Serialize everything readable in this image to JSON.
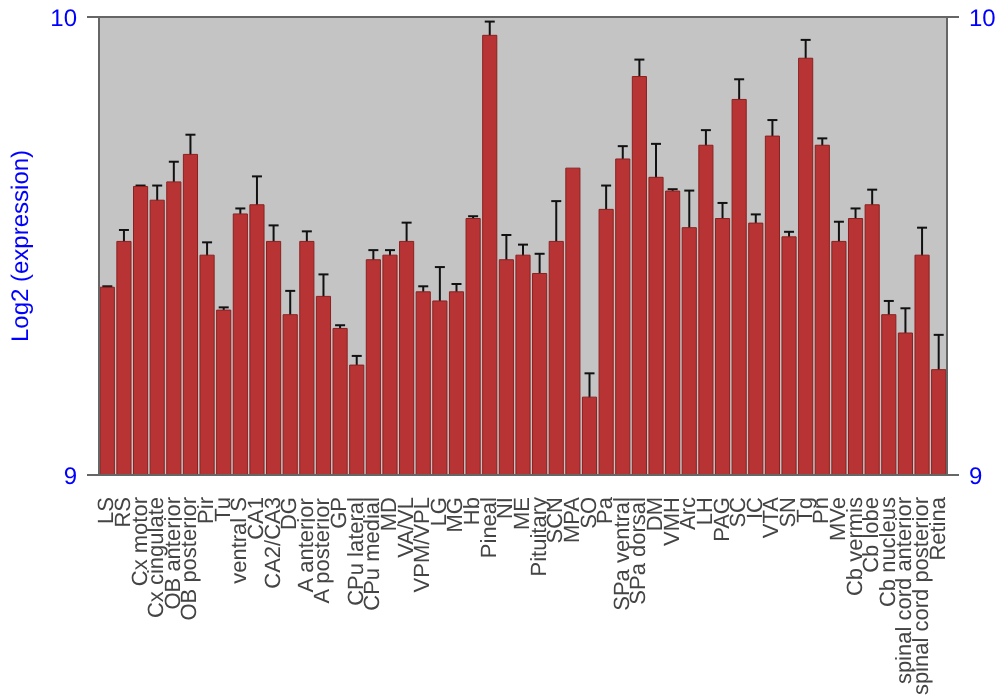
{
  "chart_data": {
    "type": "bar",
    "ylabel": "Log2 (expression)",
    "categories": [
      "LS",
      "RS",
      "Cx motor",
      "Cx cingulate",
      "OB anterior",
      "OB posterior",
      "Pir",
      "Tu",
      "ventral S",
      "CA1",
      "CA2/CA3",
      "DG",
      "A anterior",
      "A posterior",
      "GP",
      "CPu lateral",
      "CPu medial",
      "MD",
      "VA/VL",
      "VPM/VPL",
      "LG",
      "MG",
      "Hb",
      "Pineal",
      "NI",
      "ME",
      "Pituitary",
      "SCN",
      "MPA",
      "SO",
      "Pa",
      "SPa ventral",
      "SPa dorsal",
      "DM",
      "VMH",
      "Arc",
      "LH",
      "PAG",
      "SC",
      "IC",
      "VTA",
      "SN",
      "Tg",
      "Pn",
      "MVe",
      "Cb vermis",
      "Cb lobe",
      "Cb nucleus",
      "spinal cord anterior",
      "spinal cord posterior",
      "Retina"
    ],
    "values": [
      9.41,
      9.51,
      9.63,
      9.6,
      9.64,
      9.7,
      9.48,
      9.36,
      9.57,
      9.59,
      9.51,
      9.35,
      9.51,
      9.39,
      9.32,
      9.24,
      9.47,
      9.48,
      9.51,
      9.4,
      9.38,
      9.4,
      9.56,
      9.96,
      9.47,
      9.48,
      9.44,
      9.51,
      9.67,
      9.17,
      9.58,
      9.69,
      9.87,
      9.65,
      9.62,
      9.54,
      9.72,
      9.56,
      9.82,
      9.55,
      9.74,
      9.52,
      9.91,
      9.72,
      9.51,
      9.56,
      9.59,
      9.35,
      9.31,
      9.48,
      9.23
    ],
    "errors": [
      0.002,
      0.025,
      0.002,
      0.032,
      0.044,
      0.043,
      0.028,
      0.006,
      0.012,
      0.062,
      0.035,
      0.052,
      0.022,
      0.048,
      0.007,
      0.02,
      0.021,
      0.011,
      0.041,
      0.012,
      0.074,
      0.017,
      0.005,
      0.03,
      0.054,
      0.023,
      0.043,
      0.088,
      null,
      0.052,
      0.052,
      0.028,
      0.037,
      0.073,
      0.004,
      0.081,
      0.033,
      0.034,
      0.044,
      0.019,
      0.035,
      0.011,
      0.04,
      0.015,
      0.043,
      0.022,
      0.033,
      0.03,
      0.054,
      0.06,
      0.076
    ],
    "color": "#b83434",
    "ylim": [
      9,
      10
    ],
    "yticks": [
      9,
      10
    ],
    "y2lim": [
      9,
      10
    ],
    "y2ticks": [
      9,
      10
    ],
    "grid": false
  }
}
